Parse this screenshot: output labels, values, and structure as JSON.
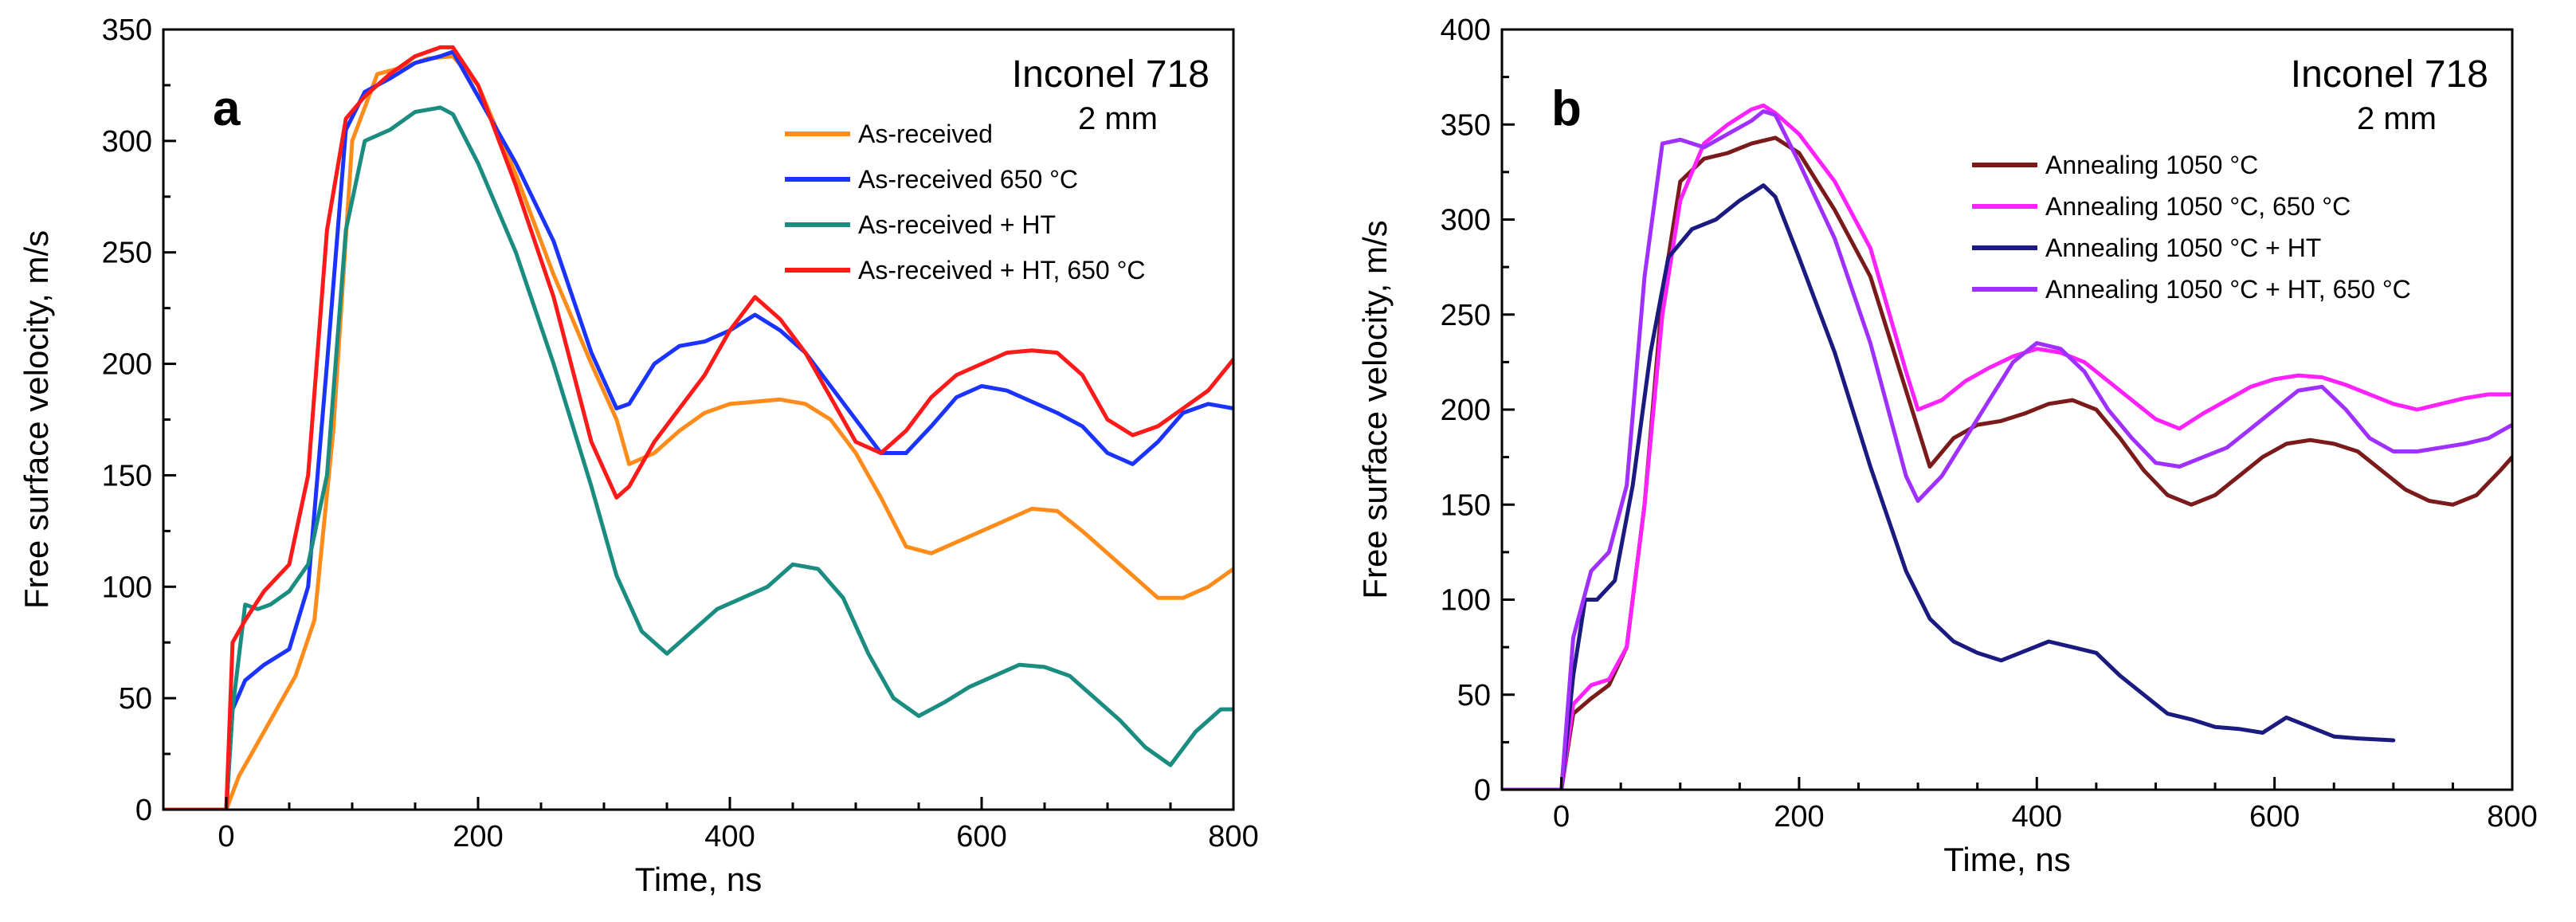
{
  "chart_data": [
    {
      "type": "line",
      "panel_label": "a",
      "annotation": "Inconel 718",
      "annotation_sub": "2 mm",
      "xlabel": "Time, ns",
      "ylabel": "Free surface velocity, m/s",
      "xlim": [
        -50,
        800
      ],
      "ylim": [
        0,
        350
      ],
      "xticks": [
        0,
        200,
        400,
        600,
        800
      ],
      "yticks": [
        0,
        50,
        100,
        150,
        200,
        250,
        300,
        350
      ],
      "legend_position": "top-right",
      "series": [
        {
          "name": "As-received",
          "color": "#ff8c1a",
          "x": [
            -50,
            -20,
            0,
            10,
            25,
            40,
            55,
            70,
            85,
            100,
            120,
            140,
            160,
            180,
            200,
            230,
            260,
            290,
            310,
            320,
            340,
            360,
            380,
            400,
            420,
            440,
            460,
            480,
            500,
            520,
            540,
            560,
            580,
            600,
            620,
            640,
            660,
            680,
            700,
            720,
            740,
            760,
            780,
            800
          ],
          "y": [
            0,
            0,
            0,
            15,
            30,
            45,
            60,
            85,
            170,
            300,
            330,
            333,
            337,
            338,
            325,
            285,
            240,
            200,
            175,
            155,
            160,
            170,
            178,
            182,
            183,
            184,
            182,
            175,
            160,
            140,
            118,
            115,
            120,
            125,
            130,
            135,
            134,
            125,
            115,
            105,
            95,
            95,
            100,
            108
          ]
        },
        {
          "name": "As-received 650 °C",
          "color": "#1a33ff",
          "x": [
            -50,
            -20,
            0,
            5,
            15,
            30,
            50,
            65,
            80,
            95,
            110,
            130,
            150,
            170,
            180,
            200,
            230,
            260,
            290,
            310,
            320,
            340,
            360,
            380,
            400,
            420,
            440,
            460,
            480,
            500,
            520,
            540,
            560,
            580,
            600,
            620,
            640,
            660,
            680,
            700,
            720,
            740,
            760,
            780,
            800
          ],
          "y": [
            0,
            0,
            0,
            45,
            58,
            65,
            72,
            100,
            200,
            305,
            322,
            328,
            335,
            338,
            340,
            320,
            290,
            255,
            205,
            180,
            182,
            200,
            208,
            210,
            215,
            222,
            215,
            205,
            190,
            175,
            160,
            160,
            172,
            185,
            190,
            188,
            183,
            178,
            172,
            160,
            155,
            165,
            178,
            182,
            180
          ]
        },
        {
          "name": "As-received + HT",
          "color": "#1a8c80",
          "x": [
            -50,
            -20,
            0,
            5,
            15,
            25,
            35,
            50,
            65,
            80,
            95,
            110,
            130,
            150,
            170,
            180,
            200,
            230,
            260,
            290,
            310,
            330,
            350,
            370,
            390,
            410,
            430,
            450,
            470,
            490,
            510,
            530,
            550,
            570,
            590,
            610,
            630,
            650,
            670,
            690,
            710,
            730,
            750,
            770,
            790,
            800
          ],
          "y": [
            0,
            0,
            0,
            45,
            92,
            90,
            92,
            98,
            110,
            150,
            260,
            300,
            305,
            313,
            315,
            312,
            290,
            250,
            200,
            145,
            105,
            80,
            70,
            80,
            90,
            95,
            100,
            110,
            108,
            95,
            70,
            50,
            42,
            48,
            55,
            60,
            65,
            64,
            60,
            50,
            40,
            28,
            20,
            35,
            45,
            45
          ]
        },
        {
          "name": "As-received + HT, 650 °C",
          "color": "#ff1a1a",
          "x": [
            -50,
            -20,
            0,
            5,
            15,
            30,
            50,
            65,
            80,
            95,
            110,
            130,
            150,
            170,
            180,
            200,
            230,
            260,
            290,
            310,
            320,
            340,
            360,
            380,
            400,
            420,
            440,
            460,
            480,
            500,
            520,
            540,
            560,
            580,
            600,
            620,
            640,
            660,
            680,
            700,
            720,
            740,
            760,
            780,
            800
          ],
          "y": [
            0,
            0,
            0,
            75,
            85,
            98,
            110,
            150,
            260,
            310,
            320,
            330,
            338,
            342,
            342,
            325,
            280,
            230,
            165,
            140,
            145,
            165,
            180,
            195,
            215,
            230,
            220,
            205,
            185,
            165,
            160,
            170,
            185,
            195,
            200,
            205,
            206,
            205,
            195,
            175,
            168,
            172,
            180,
            188,
            202
          ]
        }
      ]
    },
    {
      "type": "line",
      "panel_label": "b",
      "annotation": "Inconel 718",
      "annotation_sub": "2 mm",
      "xlabel": "Time, ns",
      "ylabel": "Free surface velocity, m/s",
      "xlim": [
        -50,
        800
      ],
      "ylim": [
        0,
        400
      ],
      "xticks": [
        0,
        200,
        400,
        600,
        800
      ],
      "yticks": [
        0,
        50,
        100,
        150,
        200,
        250,
        300,
        350,
        400
      ],
      "legend_position": "top-right",
      "series": [
        {
          "name": "Annealing 1050 °C",
          "color": "#7a1a1a",
          "x": [
            -50,
            -20,
            0,
            10,
            25,
            40,
            55,
            70,
            85,
            100,
            120,
            140,
            160,
            180,
            200,
            230,
            260,
            290,
            310,
            330,
            350,
            370,
            390,
            410,
            430,
            450,
            470,
            490,
            510,
            530,
            550,
            570,
            590,
            610,
            630,
            650,
            670,
            690,
            710,
            730,
            750,
            770,
            790,
            800
          ],
          "y": [
            0,
            0,
            0,
            40,
            48,
            55,
            75,
            150,
            260,
            320,
            332,
            335,
            340,
            343,
            335,
            305,
            270,
            210,
            170,
            185,
            192,
            194,
            198,
            203,
            205,
            200,
            185,
            168,
            155,
            150,
            155,
            165,
            175,
            182,
            184,
            182,
            178,
            168,
            158,
            152,
            150,
            155,
            168,
            175
          ]
        },
        {
          "name": "Annealing 1050 °C, 650 °C",
          "color": "#ff22ff",
          "x": [
            -50,
            -20,
            0,
            10,
            25,
            40,
            55,
            70,
            85,
            100,
            120,
            140,
            160,
            170,
            180,
            200,
            230,
            260,
            290,
            300,
            320,
            340,
            360,
            380,
            400,
            420,
            440,
            460,
            480,
            500,
            520,
            540,
            560,
            580,
            600,
            620,
            640,
            660,
            680,
            700,
            720,
            740,
            760,
            780,
            800
          ],
          "y": [
            0,
            0,
            0,
            45,
            55,
            58,
            75,
            150,
            250,
            310,
            340,
            350,
            358,
            360,
            356,
            345,
            320,
            285,
            220,
            200,
            205,
            215,
            222,
            228,
            232,
            230,
            225,
            215,
            205,
            195,
            190,
            198,
            205,
            212,
            216,
            218,
            217,
            213,
            208,
            203,
            200,
            203,
            206,
            208,
            208
          ]
        },
        {
          "name": "Annealing 1050 °C + HT",
          "color": "#1a1a80",
          "x": [
            -50,
            -20,
            0,
            10,
            20,
            30,
            45,
            60,
            75,
            90,
            110,
            130,
            150,
            170,
            180,
            200,
            230,
            260,
            290,
            310,
            330,
            350,
            370,
            390,
            410,
            430,
            450,
            470,
            490,
            510,
            530,
            550,
            570,
            590,
            610,
            630,
            650,
            670,
            700
          ],
          "y": [
            0,
            0,
            0,
            60,
            100,
            100,
            110,
            160,
            230,
            280,
            295,
            300,
            310,
            318,
            312,
            280,
            230,
            170,
            115,
            90,
            78,
            72,
            68,
            73,
            78,
            75,
            72,
            60,
            50,
            40,
            37,
            33,
            32,
            30,
            38,
            33,
            28,
            27,
            26
          ]
        },
        {
          "name": "Annealing 1050 °C + HT, 650 °C",
          "color": "#a030ff",
          "x": [
            -50,
            -20,
            0,
            10,
            25,
            40,
            55,
            70,
            85,
            100,
            120,
            140,
            160,
            170,
            180,
            200,
            230,
            260,
            290,
            300,
            320,
            340,
            360,
            380,
            400,
            420,
            440,
            460,
            480,
            500,
            520,
            540,
            560,
            580,
            600,
            620,
            640,
            660,
            680,
            700,
            720,
            740,
            760,
            780,
            800
          ],
          "y": [
            0,
            0,
            0,
            80,
            115,
            125,
            160,
            270,
            340,
            342,
            338,
            345,
            352,
            357,
            355,
            330,
            290,
            235,
            165,
            152,
            165,
            185,
            205,
            225,
            235,
            232,
            220,
            200,
            185,
            172,
            170,
            175,
            180,
            190,
            200,
            210,
            212,
            200,
            185,
            178,
            178,
            180,
            182,
            185,
            192
          ]
        }
      ]
    }
  ]
}
